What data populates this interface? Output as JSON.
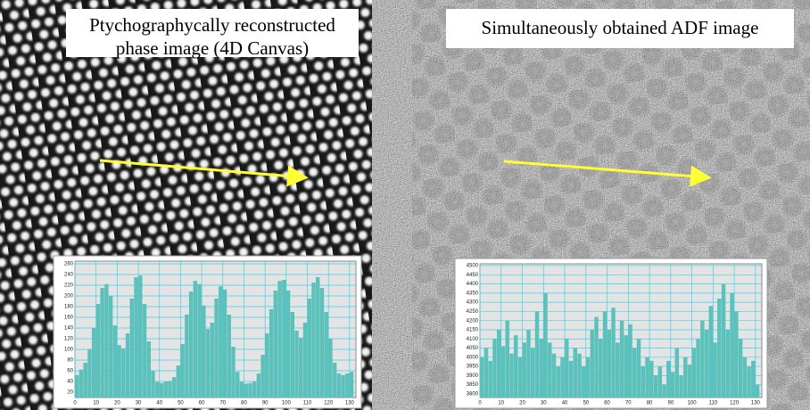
{
  "chart_data": [
    {
      "type": "histogram",
      "title": [
        "Ptychographycally reconstructed",
        "phase image (4D Canvas)"
      ],
      "color": "#5cc0bb",
      "bins": [
        0,
        2,
        4,
        6,
        8,
        10,
        12,
        14,
        16,
        18,
        20,
        22,
        24,
        26,
        28,
        30,
        32,
        34,
        36,
        38,
        40,
        42,
        44,
        46,
        48,
        50,
        52,
        54,
        56,
        58,
        60,
        62,
        64,
        66,
        68,
        70,
        72,
        74,
        76,
        78,
        80,
        82,
        84,
        86,
        88,
        90,
        92,
        94,
        96,
        98,
        100,
        102,
        104,
        106,
        108,
        110,
        112,
        114,
        116,
        118,
        120,
        122,
        124,
        126,
        128,
        130,
        132
      ],
      "values": [
        52,
        62,
        75,
        100,
        140,
        185,
        215,
        222,
        200,
        145,
        108,
        102,
        130,
        195,
        235,
        238,
        185,
        115,
        60,
        39,
        37,
        40,
        41,
        48,
        70,
        110,
        165,
        208,
        228,
        222,
        182,
        138,
        150,
        195,
        218,
        212,
        165,
        105,
        58,
        39,
        36,
        37,
        40,
        55,
        90,
        130,
        175,
        210,
        228,
        230,
        210,
        170,
        135,
        122,
        150,
        195,
        225,
        235,
        215,
        170,
        120,
        75,
        55,
        52,
        55,
        58
      ],
      "xlim": [
        0,
        133
      ],
      "xticks": [
        0,
        10,
        20,
        30,
        40,
        50,
        60,
        70,
        80,
        90,
        100,
        110,
        120,
        130
      ],
      "ylim": [
        10,
        265
      ],
      "yticks": [
        20,
        40,
        60,
        80,
        100,
        120,
        140,
        160,
        180,
        200,
        220,
        240,
        260
      ],
      "grid": true
    },
    {
      "type": "histogram",
      "title": [
        "Simultaneously obtained ADF image"
      ],
      "color": "#5cc0bb",
      "bins": [
        0,
        2,
        4,
        6,
        8,
        10,
        12,
        14,
        16,
        18,
        20,
        22,
        24,
        26,
        28,
        30,
        32,
        34,
        36,
        38,
        40,
        42,
        44,
        46,
        48,
        50,
        52,
        54,
        56,
        58,
        60,
        62,
        64,
        66,
        68,
        70,
        72,
        74,
        76,
        78,
        80,
        82,
        84,
        86,
        88,
        90,
        92,
        94,
        96,
        98,
        100,
        102,
        104,
        106,
        108,
        110,
        112,
        114,
        116,
        118,
        120,
        122,
        124,
        126,
        128,
        130,
        132
      ],
      "values": [
        4000,
        4050,
        3980,
        4100,
        4150,
        4060,
        4200,
        4020,
        4120,
        4000,
        4080,
        4150,
        4050,
        4250,
        4100,
        4350,
        4080,
        4020,
        3950,
        4000,
        4100,
        3980,
        4050,
        4020,
        3950,
        4000,
        4150,
        4220,
        4100,
        4250,
        4150,
        4270,
        4080,
        4200,
        4120,
        4180,
        4050,
        4100,
        3950,
        4000,
        3980,
        3900,
        3950,
        3850,
        3980,
        3920,
        4050,
        3900,
        4000,
        3960,
        4050,
        4100,
        4200,
        4150,
        4280,
        4080,
        4320,
        4400,
        4150,
        4350,
        4250,
        4100,
        4000,
        3950,
        3980,
        3850
      ],
      "xlim": [
        0,
        133
      ],
      "xticks": [
        0,
        10,
        20,
        30,
        40,
        50,
        60,
        70,
        80,
        90,
        100,
        110,
        120,
        130
      ],
      "ylim": [
        3780,
        4510
      ],
      "yticks": [
        3800,
        3850,
        3900,
        3950,
        4000,
        4050,
        4100,
        4150,
        4200,
        4250,
        4300,
        4350,
        4400,
        4450,
        4500
      ],
      "grid": true
    }
  ]
}
